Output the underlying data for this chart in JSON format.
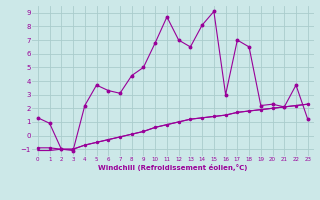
{
  "title": "",
  "xlabel": "Windchill (Refroidissement éolien,°C)",
  "background_color": "#cce8e8",
  "grid_color": "#aacccc",
  "line_color": "#990099",
  "x_data": [
    0,
    1,
    2,
    3,
    4,
    5,
    6,
    7,
    8,
    9,
    10,
    11,
    12,
    13,
    14,
    15,
    16,
    17,
    18,
    19,
    20,
    21,
    22,
    23
  ],
  "line1": [
    1.3,
    0.9,
    -1.0,
    -1.1,
    2.2,
    3.7,
    3.3,
    3.1,
    4.4,
    5.0,
    6.8,
    8.7,
    7.0,
    6.5,
    8.1,
    9.1,
    3.0,
    7.0,
    6.5,
    2.2,
    2.3,
    2.1,
    3.7,
    1.2
  ],
  "line2": [
    -0.9,
    -0.9,
    -1.0,
    -1.0,
    -0.7,
    -0.5,
    -0.3,
    -0.1,
    0.1,
    0.3,
    0.6,
    0.8,
    1.0,
    1.2,
    1.3,
    1.4,
    1.5,
    1.7,
    1.8,
    1.9,
    2.0,
    2.1,
    2.2,
    2.3
  ],
  "line3": [
    -1.1,
    -1.1,
    -1.0,
    -1.0,
    -0.7,
    -0.5,
    -0.3,
    -0.1,
    0.1,
    0.3,
    0.6,
    0.8,
    1.0,
    1.2,
    1.3,
    1.4,
    1.5,
    1.7,
    1.8,
    1.9,
    2.0,
    2.1,
    2.2,
    2.3
  ],
  "ylim": [
    -1.5,
    9.5
  ],
  "xlim": [
    -0.5,
    23.5
  ],
  "yticks": [
    -1,
    0,
    1,
    2,
    3,
    4,
    5,
    6,
    7,
    8,
    9
  ],
  "xticks": [
    0,
    1,
    2,
    3,
    4,
    5,
    6,
    7,
    8,
    9,
    10,
    11,
    12,
    13,
    14,
    15,
    16,
    17,
    18,
    19,
    20,
    21,
    22,
    23
  ]
}
